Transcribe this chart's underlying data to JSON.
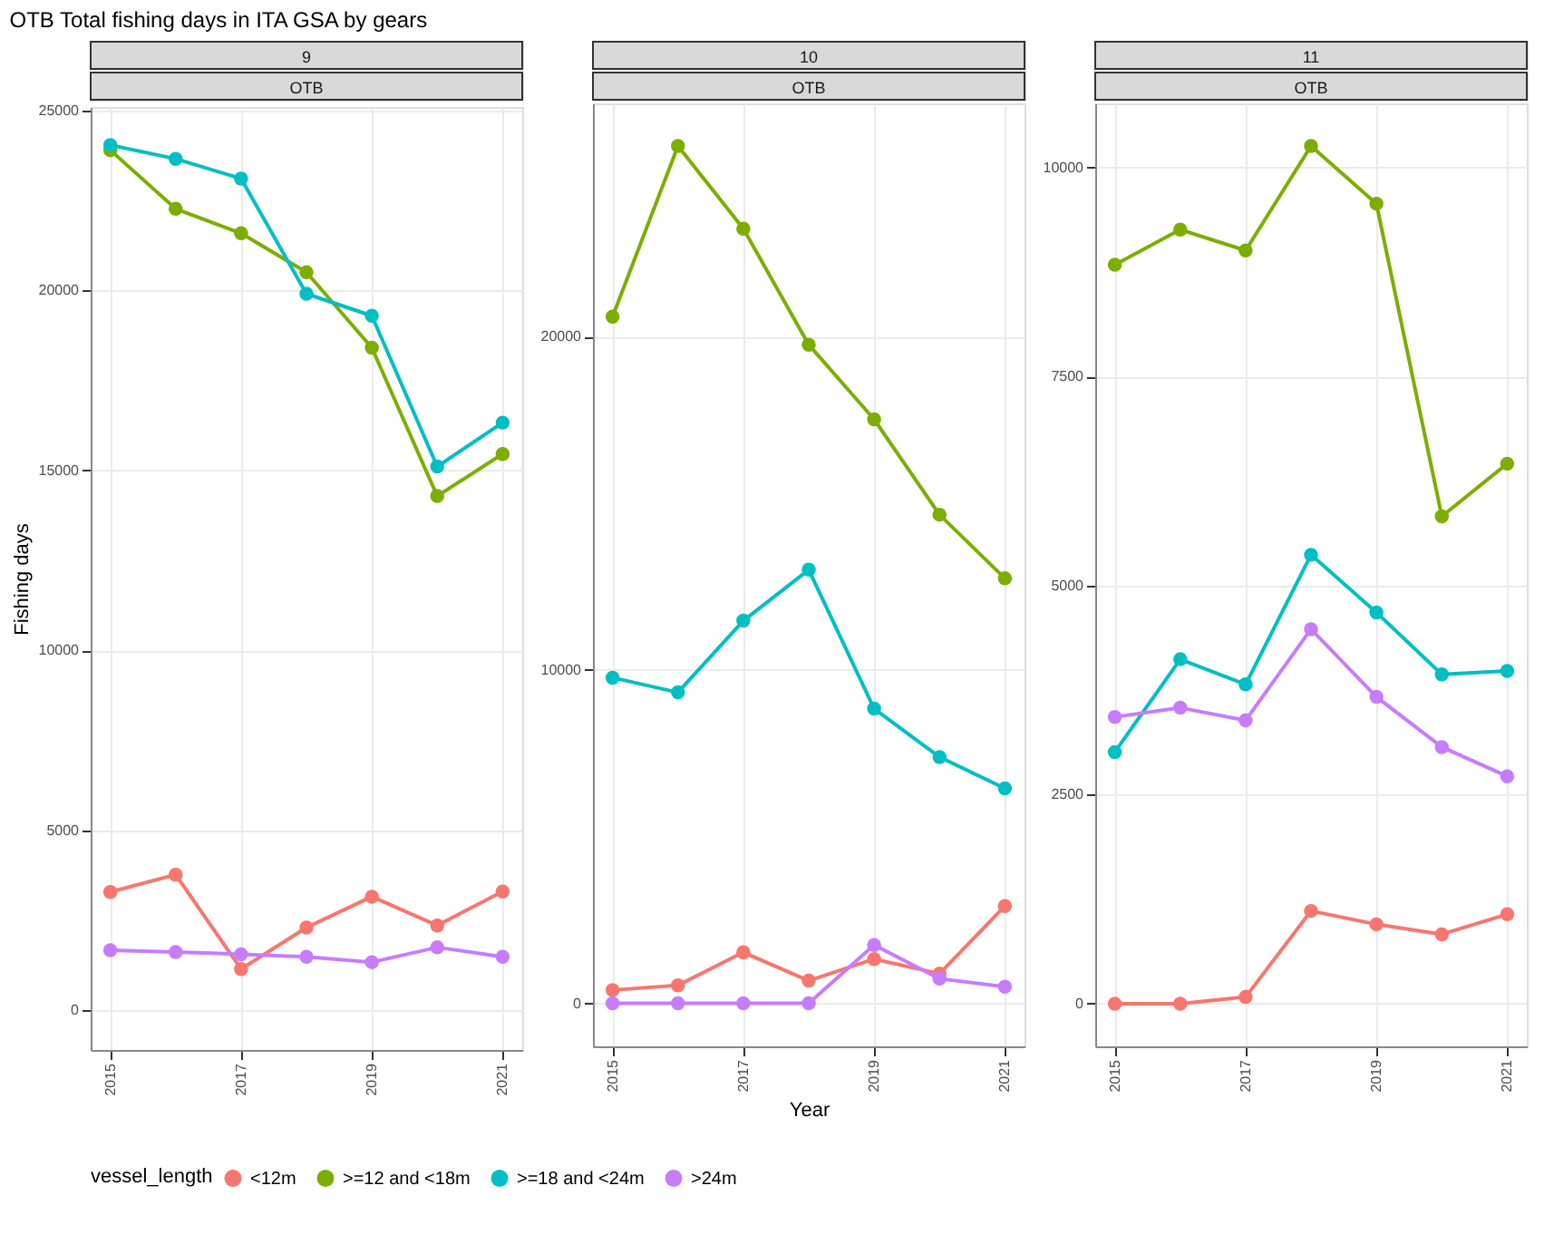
{
  "chart_data": [
    {
      "type": "line",
      "title": "9",
      "subtitle": "OTB",
      "annotations": [
        "OTB Total fishing days in ITA GSA by gears"
      ],
      "ylabel": "Fishing days",
      "legend_title": "vessel_length",
      "legend": "bottom",
      "grid": true,
      "marker": "circle",
      "line_style": "solid",
      "x": [
        2015,
        2016,
        2017,
        2018,
        2019,
        2020,
        2021
      ],
      "xlim": [
        2014.7,
        2021.3
      ],
      "xticks": [
        2015,
        2017,
        2019,
        2021
      ],
      "ylim": [
        -1100,
        25100
      ],
      "yticks": [
        0,
        5000,
        10000,
        15000,
        20000,
        25000
      ],
      "series": [
        {
          "name": "<12m",
          "color": "#f8766d",
          "values": [
            3290,
            3770,
            1150,
            2300,
            3160,
            2360,
            3300
          ]
        },
        {
          "name": ">=12 and <18m",
          "color": "#7cae00",
          "values": [
            23900,
            22270,
            21590,
            20510,
            18410,
            14290,
            15460
          ]
        },
        {
          "name": ">=18 and <24m",
          "color": "#00bfc4",
          "values": [
            24040,
            23660,
            23110,
            19910,
            19300,
            15110,
            16330
          ]
        },
        {
          "name": ">24m",
          "color": "#c77cff",
          "values": [
            1670,
            1620,
            1560,
            1490,
            1340,
            1750,
            1490
          ]
        }
      ]
    },
    {
      "type": "line",
      "title": "10",
      "subtitle": "OTB",
      "xlabel": "Year",
      "grid": true,
      "marker": "circle",
      "line_style": "solid",
      "x": [
        2015,
        2016,
        2017,
        2018,
        2019,
        2020,
        2021
      ],
      "xlim": [
        2014.7,
        2021.3
      ],
      "xticks": [
        2015,
        2017,
        2019,
        2021
      ],
      "ylim": [
        -1290,
        27000
      ],
      "yticks": [
        0,
        10000,
        20000
      ],
      "series": [
        {
          "name": "<12m",
          "color": "#f8766d",
          "values": [
            400,
            540,
            1530,
            680,
            1330,
            890,
            2920
          ]
        },
        {
          "name": ">=12 and <18m",
          "color": "#7cae00",
          "values": [
            20600,
            25720,
            23240,
            19760,
            17520,
            14660,
            12750
          ]
        },
        {
          "name": ">=18 and <24m",
          "color": "#00bfc4",
          "values": [
            9770,
            9330,
            11480,
            13010,
            8840,
            7390,
            6450
          ]
        },
        {
          "name": ">24m",
          "color": "#c77cff",
          "values": [
            0,
            0,
            0,
            0,
            1750,
            740,
            500
          ]
        }
      ]
    },
    {
      "type": "line",
      "title": "11",
      "subtitle": "OTB",
      "grid": true,
      "marker": "circle",
      "line_style": "solid",
      "x": [
        2015,
        2016,
        2017,
        2018,
        2019,
        2020,
        2021
      ],
      "xlim": [
        2014.7,
        2021.3
      ],
      "xticks": [
        2015,
        2017,
        2019,
        2021
      ],
      "ylim": [
        -510,
        10770
      ],
      "yticks": [
        0,
        2500,
        5000,
        7500,
        10000
      ],
      "series": [
        {
          "name": "<12m",
          "color": "#f8766d",
          "values": [
            0,
            0,
            80,
            1110,
            950,
            830,
            1070
          ]
        },
        {
          "name": ">=12 and <18m",
          "color": "#7cae00",
          "values": [
            8840,
            9260,
            9010,
            10260,
            9570,
            5830,
            6460
          ]
        },
        {
          "name": ">=18 and <24m",
          "color": "#00bfc4",
          "values": [
            3010,
            4120,
            3820,
            5370,
            4680,
            3940,
            3980
          ]
        },
        {
          "name": ">24m",
          "color": "#c77cff",
          "values": [
            3430,
            3540,
            3390,
            4480,
            3670,
            3070,
            2720
          ]
        }
      ]
    }
  ]
}
